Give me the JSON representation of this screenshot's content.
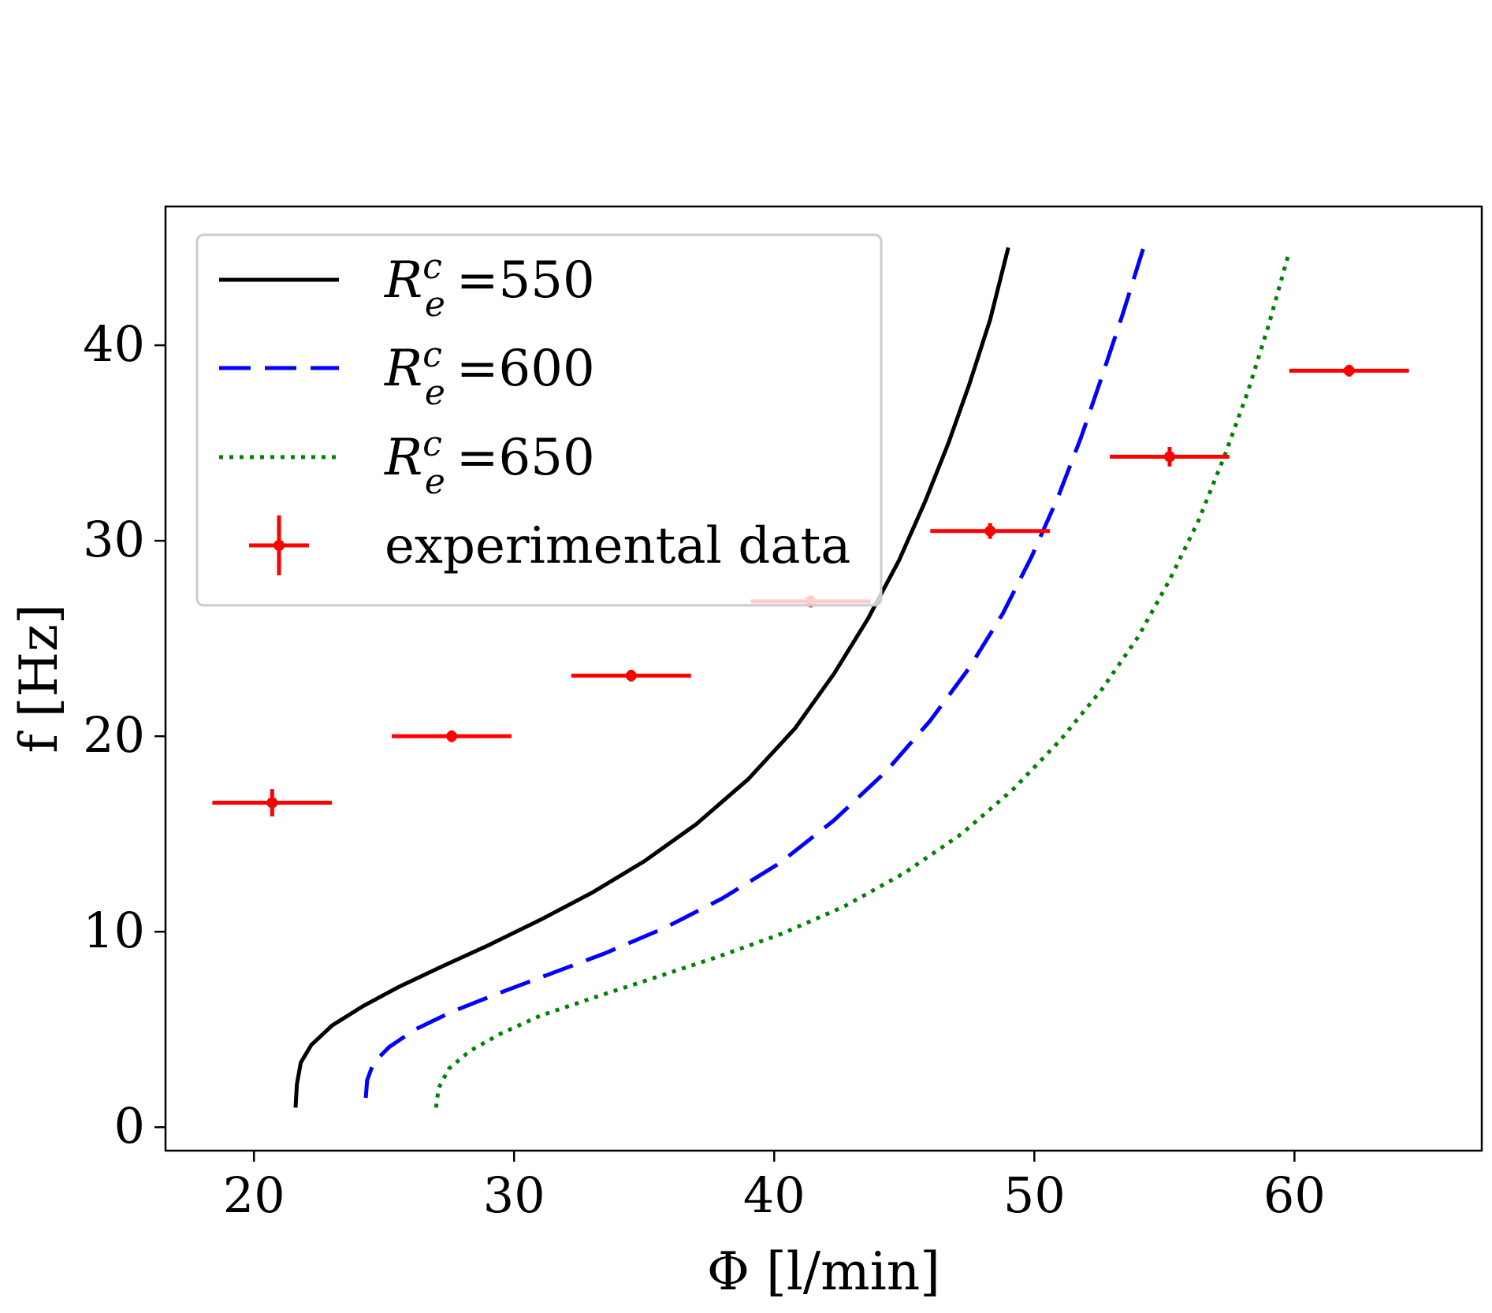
{
  "chart_data": {
    "type": "line",
    "title": "",
    "xlabel": "Φ [l/min]",
    "ylabel": "f [Hz]",
    "xlim": [
      16.6,
      67.2
    ],
    "ylim": [
      -1.2,
      47.1
    ],
    "xticks": [
      20,
      30,
      40,
      50,
      60
    ],
    "yticks": [
      0,
      10,
      20,
      30,
      40
    ],
    "grid": false,
    "legend_position": "top-left",
    "series": [
      {
        "name": "R_e^c =550",
        "legend_base": "R",
        "legend_sub": "e",
        "legend_sup": "c",
        "legend_suffix": "=550",
        "color": "#000000",
        "style": "solid",
        "x": [
          21.6,
          21.65,
          21.8,
          22.2,
          23.0,
          24.2,
          25.6,
          27.2,
          29.0,
          31.0,
          33.0,
          35.0,
          37.0,
          39.0,
          40.8,
          42.3,
          43.6,
          44.8,
          45.8,
          46.7,
          47.5,
          48.3,
          49.0
        ],
        "y": [
          1.0,
          2.2,
          3.3,
          4.2,
          5.2,
          6.2,
          7.2,
          8.2,
          9.3,
          10.6,
          12.0,
          13.6,
          15.5,
          17.8,
          20.4,
          23.2,
          26.0,
          29.0,
          32.0,
          35.0,
          38.0,
          41.3,
          45.0
        ]
      },
      {
        "name": "R_e^c =600",
        "legend_base": "R",
        "legend_sub": "e",
        "legend_sup": "c",
        "legend_suffix": "=600",
        "color": "#0000ff",
        "style": "dashed",
        "x": [
          24.3,
          24.35,
          24.6,
          25.2,
          26.2,
          27.6,
          29.3,
          31.3,
          33.5,
          35.8,
          38.0,
          40.2,
          42.3,
          44.3,
          46.0,
          47.5,
          48.8,
          49.9,
          50.9,
          51.8,
          52.6,
          53.4,
          54.2
        ],
        "y": [
          1.5,
          2.4,
          3.3,
          4.1,
          5.0,
          5.9,
          6.8,
          7.8,
          8.9,
          10.2,
          11.7,
          13.5,
          15.7,
          18.2,
          20.8,
          23.5,
          26.3,
          29.2,
          32.2,
          35.3,
          38.4,
          41.6,
          45.0
        ]
      },
      {
        "name": "R_e^c =650",
        "legend_base": "R",
        "legend_sub": "e",
        "legend_sup": "c",
        "legend_suffix": "=650",
        "color": "#008000",
        "style": "dotted",
        "x": [
          27.0,
          27.1,
          27.5,
          28.3,
          29.5,
          31.0,
          33.0,
          35.3,
          37.8,
          40.3,
          42.7,
          45.0,
          47.2,
          49.2,
          51.0,
          52.6,
          54.0,
          55.2,
          56.3,
          57.3,
          58.2,
          59.0,
          59.8
        ],
        "y": [
          1.0,
          2.0,
          3.0,
          3.9,
          4.8,
          5.7,
          6.6,
          7.6,
          8.7,
          9.9,
          11.3,
          13.0,
          15.0,
          17.3,
          19.8,
          22.4,
          25.1,
          28.0,
          31.0,
          34.3,
          37.6,
          41.0,
          44.8
        ]
      }
    ],
    "experimental": {
      "name": "experimental data",
      "color": "#ff0000",
      "x": [
        20.7,
        27.6,
        34.5,
        41.4,
        48.3,
        55.2,
        62.1
      ],
      "y": [
        16.6,
        20.0,
        23.1,
        26.9,
        30.5,
        34.3,
        38.7
      ],
      "x_err": [
        2.3,
        2.3,
        2.3,
        2.3,
        2.3,
        2.3,
        2.3
      ],
      "y_err": [
        0.7,
        0.3,
        0.3,
        0.3,
        0.4,
        0.5,
        0.3
      ]
    }
  }
}
